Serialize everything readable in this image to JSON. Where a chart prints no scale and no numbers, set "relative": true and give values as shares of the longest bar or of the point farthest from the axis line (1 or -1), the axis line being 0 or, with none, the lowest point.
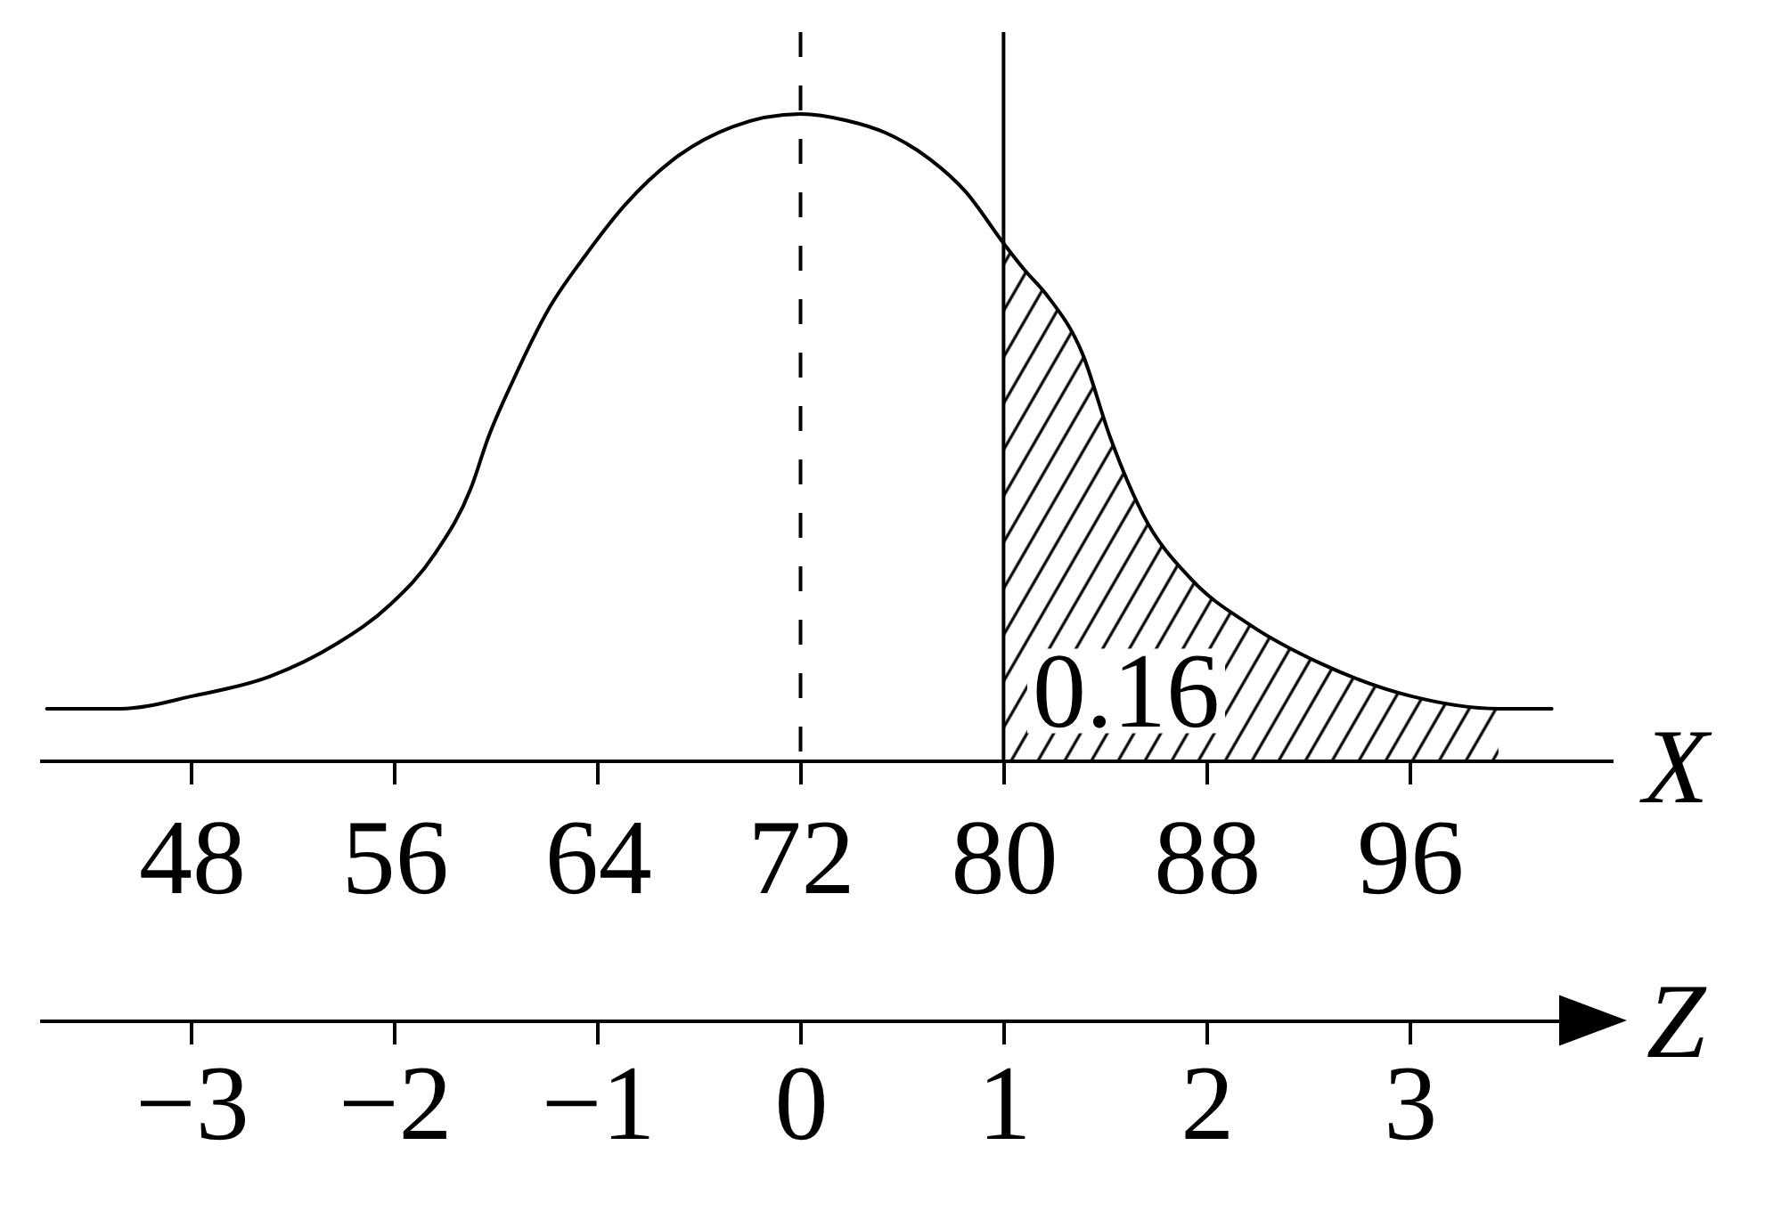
{
  "chart_data": {
    "type": "line",
    "relative": true,
    "xlabel": "X",
    "x2label": "Z",
    "xlim": [
      42,
      104
    ],
    "xticks": [
      48,
      56,
      64,
      72,
      80,
      88,
      96
    ],
    "x2lim": [
      -3.75,
      4
    ],
    "x2ticks": [
      -3,
      -2,
      -1,
      0,
      1,
      2,
      3
    ],
    "series": [
      {
        "type": "line",
        "color": "#000000",
        "x": [
          42.3,
          45.2,
          48.1,
          51.1,
          53.7,
          55.8,
          57.6,
          59.0,
          59.7,
          60.7,
          62.1,
          63.5,
          65.1,
          67.0,
          69.3,
          72.0,
          73.8,
          75.4,
          77.1,
          78.5,
          80.0,
          80.8,
          81.7,
          83.1,
          84.2,
          85.5,
          87.4,
          89.7,
          92.5,
          96.0,
          99.5,
          101.6
        ],
        "values": [
          0.08,
          0.08,
          0.1,
          0.13,
          0.18,
          0.24,
          0.32,
          0.42,
          0.5,
          0.59,
          0.7,
          0.78,
          0.86,
          0.93,
          0.98,
          1.0,
          0.99,
          0.97,
          0.93,
          0.88,
          0.8,
          0.76,
          0.72,
          0.63,
          0.5,
          0.38,
          0.28,
          0.21,
          0.15,
          0.1,
          0.08,
          0.08
        ]
      },
      {
        "type": "area",
        "color": "#000000",
        "x": [
          80.0,
          80.8,
          81.7,
          83.1,
          84.2,
          85.5,
          87.4,
          89.7,
          92.5,
          96.0,
          99.5
        ],
        "values": [
          0.8,
          0.76,
          0.72,
          0.63,
          0.5,
          0.38,
          0.28,
          0.21,
          0.15,
          0.1,
          0.08
        ]
      }
    ],
    "ref_lines": [
      {
        "axis": "x",
        "value": 72,
        "line_style": "dashed",
        "color": "#000000"
      },
      {
        "axis": "x",
        "value": 80,
        "line_style": "solid",
        "color": "#000000"
      }
    ],
    "annotations": [
      "0.16"
    ]
  }
}
